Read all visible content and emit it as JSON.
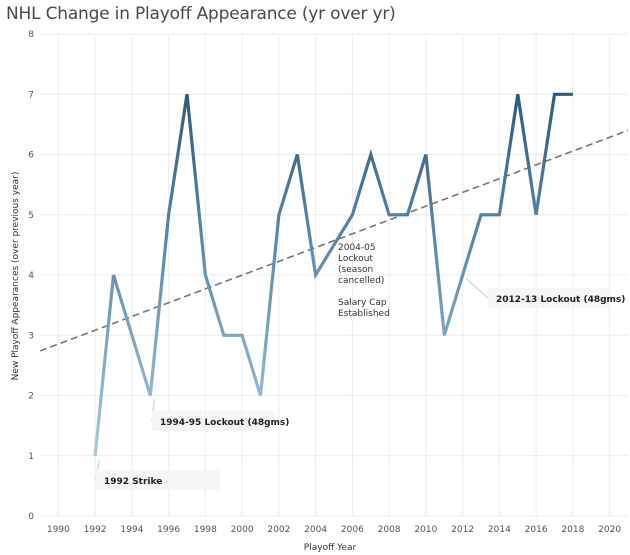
{
  "chart_data": {
    "type": "line",
    "title": "NHL Change in Playoff Appearance (yr over yr)",
    "xlabel": "Playoff Year",
    "ylabel": "New Playoff Appearances (over previous year)",
    "xlim": [
      1989,
      2021
    ],
    "ylim": [
      0,
      8
    ],
    "x_ticks": [
      1990,
      1992,
      1994,
      1996,
      1998,
      2000,
      2002,
      2004,
      2006,
      2008,
      2010,
      2012,
      2014,
      2016,
      2018,
      2020
    ],
    "y_ticks": [
      0,
      1,
      2,
      3,
      4,
      5,
      6,
      7,
      8
    ],
    "grid": true,
    "series": [
      {
        "name": "",
        "x": [
          1992,
          1993,
          1995,
          1996,
          1997,
          1998,
          1999,
          2000,
          2001,
          2002,
          2003,
          2004,
          2006,
          2007,
          2008,
          2009,
          2010,
          2011,
          2013,
          2014,
          2015,
          2016,
          2017,
          2018
        ],
        "values": [
          1,
          4,
          2,
          5,
          7,
          4,
          3,
          3,
          2,
          5,
          6,
          4,
          5,
          6,
          5,
          5,
          6,
          3,
          5,
          5,
          7,
          5,
          7,
          7
        ]
      }
    ],
    "trendline": {
      "x": [
        1989,
        2021
      ],
      "values": [
        2.74,
        6.4
      ]
    },
    "colors": {
      "line_light": "#a9c9de",
      "line_dark": "#2d5b80",
      "trend": "#777777"
    },
    "annotations": [
      {
        "text": [
          "1992 Strike"
        ],
        "x": 1992,
        "y": 1,
        "style": "box"
      },
      {
        "text": [
          "1994-95 Lockout (48gms)"
        ],
        "x": 1995,
        "y": 2,
        "style": "box"
      },
      {
        "text": [
          "2004-05",
          "Lockout",
          "(season",
          "cancelled)",
          "",
          "Salary Cap",
          "Established"
        ],
        "x": 2005,
        "y": 4.5,
        "style": "plain"
      },
      {
        "text": [
          "2012-13 Lockout (48gms)"
        ],
        "x": 2012,
        "y": 4,
        "style": "box"
      }
    ]
  }
}
